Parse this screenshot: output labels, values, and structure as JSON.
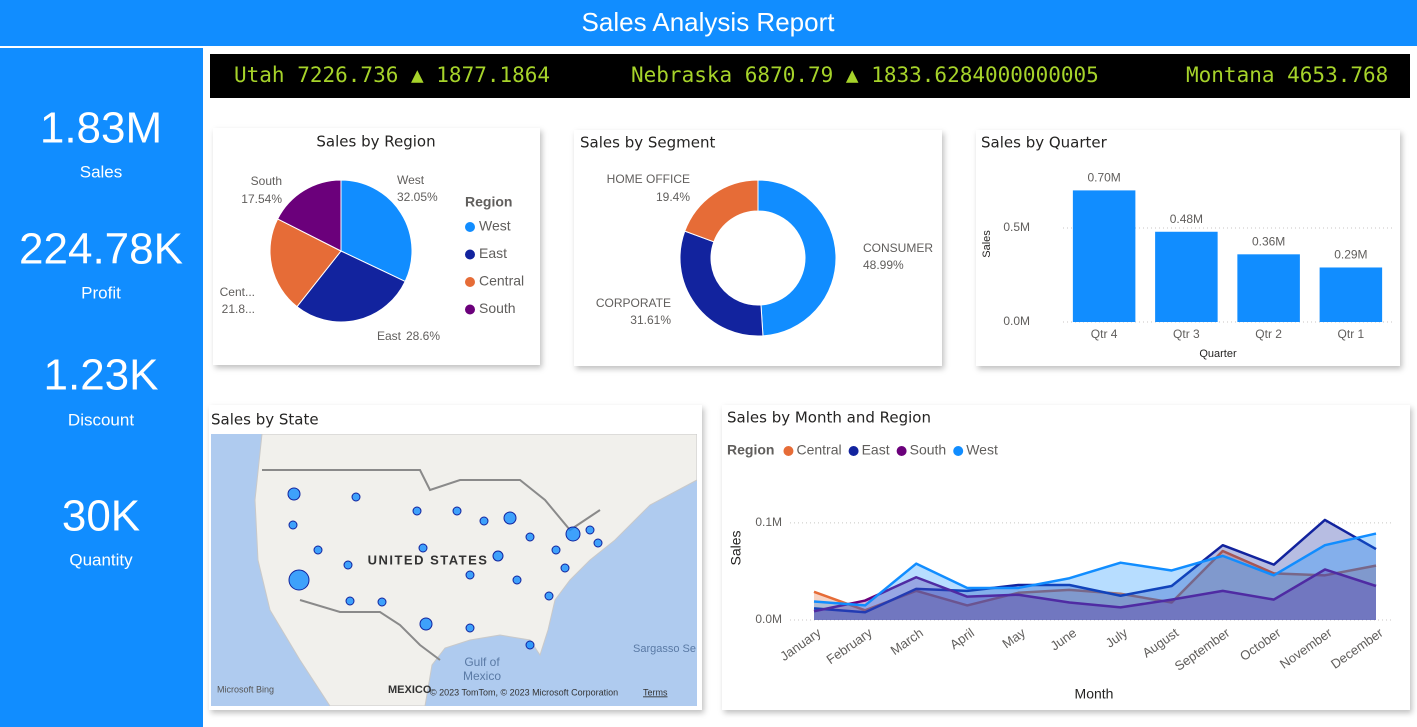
{
  "header": {
    "title": "Sales Analysis Report"
  },
  "kpis": [
    {
      "value": "1.83M",
      "label": "Sales"
    },
    {
      "value": "224.78K",
      "label": "Profit"
    },
    {
      "value": "1.23K",
      "label": "Discount"
    },
    {
      "value": "30K",
      "label": "Quantity"
    }
  ],
  "ticker": [
    "Utah 7226.736 ▲ 1877.1864",
    "Nebraska 6870.79 ▲ 1833.6284000000005",
    "Montana 4653.768"
  ],
  "map": {
    "title": "Sales by State",
    "country": "UNITED STATES",
    "sea": [
      "Gulf of",
      "Mexico"
    ],
    "ocean": "Sargasso Se",
    "neighbor": "MEXICO",
    "logo": "Microsoft Bing",
    "credits": "© 2023 TomTom, © 2023 Microsoft Corporation",
    "terms": "Terms"
  },
  "chart_data": [
    {
      "type": "pie",
      "title": "Sales by Region",
      "categories": [
        "West",
        "East",
        "Central",
        "South"
      ],
      "values": [
        32.05,
        28.6,
        21.81,
        17.54
      ],
      "label_names": [
        "West",
        "East",
        "Cent...",
        "South"
      ],
      "value_labels": [
        "32.05%",
        "28.6%",
        "21.8...",
        "17.54%"
      ],
      "colors": [
        "#118DFF",
        "#12239E",
        "#E66C37",
        "#6B007B"
      ],
      "legend_title": "Region"
    },
    {
      "type": "donut",
      "title": "Sales by Segment",
      "categories": [
        "CONSUMER",
        "CORPORATE",
        "HOME OFFICE"
      ],
      "values": [
        48.99,
        31.61,
        19.4
      ],
      "value_labels": [
        "48.99%",
        "31.61%",
        "19.4%"
      ],
      "colors": [
        "#118DFF",
        "#12239E",
        "#E66C37"
      ]
    },
    {
      "type": "bar",
      "title": "Sales by Quarter",
      "categories": [
        "Qtr 4",
        "Qtr 3",
        "Qtr 2",
        "Qtr 1"
      ],
      "values": [
        0.7,
        0.48,
        0.36,
        0.29
      ],
      "value_labels": [
        "0.70M",
        "0.48M",
        "0.36M",
        "0.29M"
      ],
      "color": "#118DFF",
      "ylim": [
        0,
        0.8
      ],
      "yticks": [
        {
          "value": 0,
          "label": "0.0M"
        },
        {
          "value": 0.5,
          "label": "0.5M"
        }
      ],
      "xlabel": "Quarter",
      "ylabel": "Sales",
      "grid": true
    },
    {
      "type": "area",
      "title": "Sales by Month and Region",
      "categories": [
        "January",
        "February",
        "March",
        "April",
        "May",
        "June",
        "July",
        "August",
        "September",
        "October",
        "November",
        "December"
      ],
      "series": [
        {
          "name": "Central",
          "color": "#E66C37",
          "values": [
            0.029,
            0.01,
            0.03,
            0.015,
            0.028,
            0.031,
            0.027,
            0.018,
            0.071,
            0.048,
            0.046,
            0.056
          ]
        },
        {
          "name": "East",
          "color": "#12239E",
          "values": [
            0.012,
            0.008,
            0.032,
            0.03,
            0.036,
            0.036,
            0.025,
            0.035,
            0.077,
            0.057,
            0.103,
            0.073
          ]
        },
        {
          "name": "South",
          "color": "#6B007B",
          "values": [
            0.009,
            0.02,
            0.044,
            0.024,
            0.026,
            0.018,
            0.013,
            0.021,
            0.03,
            0.021,
            0.052,
            0.035
          ]
        },
        {
          "name": "West",
          "color": "#118DFF",
          "values": [
            0.019,
            0.015,
            0.058,
            0.033,
            0.033,
            0.043,
            0.059,
            0.051,
            0.066,
            0.046,
            0.077,
            0.089
          ]
        }
      ],
      "ylim": [
        0,
        0.14
      ],
      "yticks": [
        {
          "value": 0,
          "label": "0.0M"
        },
        {
          "value": 0.1,
          "label": "0.1M"
        }
      ],
      "xlabel": "Month",
      "ylabel": "Sales",
      "legend_title": "Region",
      "grid": true
    }
  ]
}
